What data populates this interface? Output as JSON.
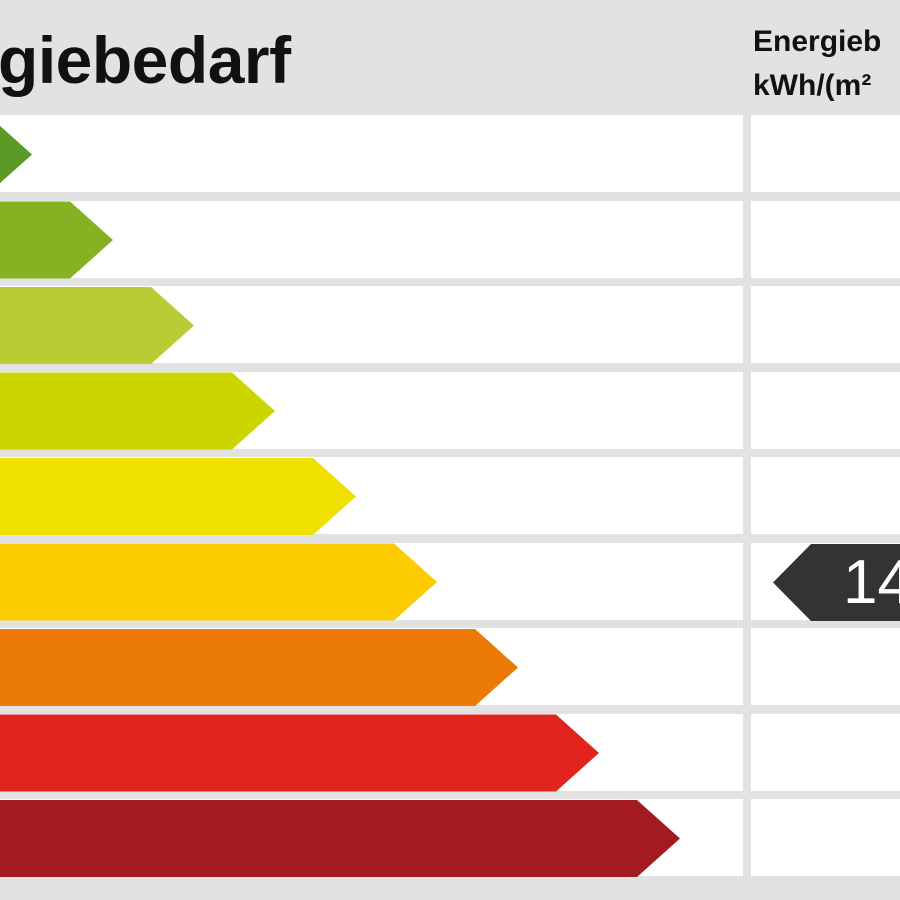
{
  "header": {
    "title": "giebedarf",
    "unit_line1": "Energieb",
    "unit_line2": "kWh/(m²"
  },
  "chart_data": {
    "type": "bar",
    "categories": [
      "",
      "",
      "",
      "",
      "",
      "",
      "",
      "",
      ""
    ],
    "colors": [
      "#5a9a27",
      "#86b123",
      "#b8cc33",
      "#cbd500",
      "#f0e000",
      "#fccb00",
      "#ec7a06",
      "#e2241f",
      "#a31b21"
    ],
    "arrow_tip_x": [
      32,
      113,
      194,
      275,
      356,
      437,
      518,
      599,
      680
    ],
    "marker": {
      "row_index": 5,
      "value_text": "14",
      "color": "#333333"
    }
  }
}
